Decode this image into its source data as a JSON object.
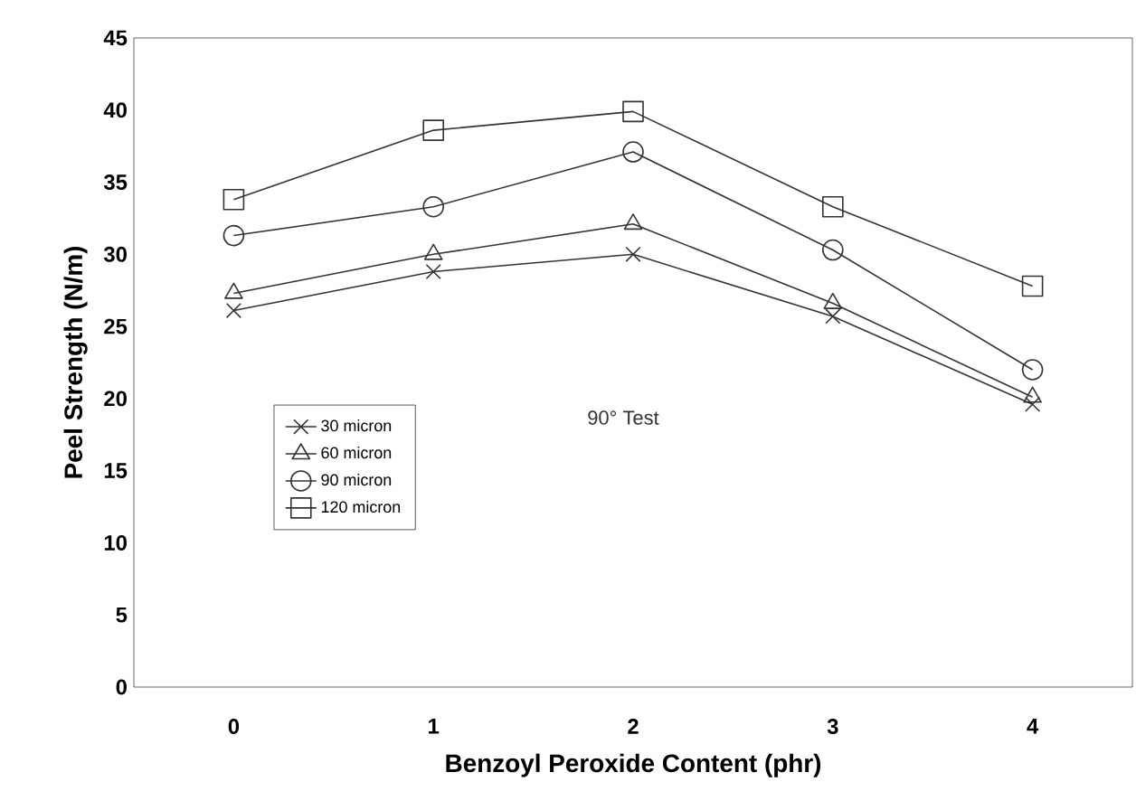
{
  "chart_data": {
    "type": "line",
    "xlabel": "Benzoyl Peroxide Content (phr)",
    "ylabel": "Peel Strength (N/m)",
    "categories": [
      "0",
      "1",
      "2",
      "3",
      "4"
    ],
    "ylim": [
      0,
      45
    ],
    "yticks": [
      0,
      5,
      10,
      15,
      20,
      25,
      30,
      35,
      40,
      45
    ],
    "series": [
      {
        "name": "30 micron",
        "color": "#333333",
        "marker": "cross",
        "values": [
          26.1,
          28.8,
          30.0,
          25.7,
          19.6
        ]
      },
      {
        "name": "60 micron",
        "color": "#333333",
        "marker": "triangle",
        "values": [
          27.3,
          30.0,
          32.1,
          26.6,
          20.1
        ]
      },
      {
        "name": "90 micron",
        "color": "#333333",
        "marker": "circle",
        "values": [
          31.3,
          33.3,
          37.1,
          30.3,
          22.0
        ]
      },
      {
        "name": "120 micron",
        "color": "#333333",
        "marker": "square",
        "values": [
          33.8,
          38.6,
          39.9,
          33.3,
          27.8
        ]
      }
    ],
    "legend": "left",
    "grid": false,
    "line_style": "solid",
    "annotations": [
      "90° Test"
    ]
  }
}
